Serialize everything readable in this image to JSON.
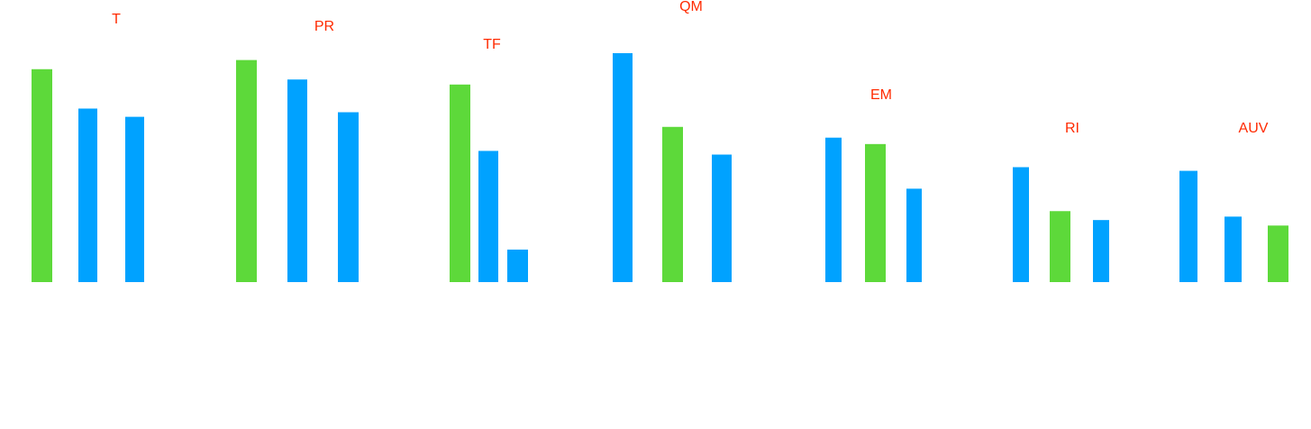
{
  "chart_data": {
    "type": "bar",
    "title": "",
    "xlabel": "",
    "ylabel": "",
    "ylim": [
      0,
      100
    ],
    "colors": {
      "highlight": "#5dd93a",
      "normal": "#00a2ff",
      "label": "#ff2a00"
    },
    "groups": [
      {
        "label": "T",
        "bars": [
          {
            "value": 93.0,
            "color": "highlight"
          },
          {
            "value": 75.8,
            "color": "normal"
          },
          {
            "value": 72.2,
            "color": "normal"
          }
        ]
      },
      {
        "label": "PR",
        "bars": [
          {
            "value": 97.0,
            "color": "highlight"
          },
          {
            "value": 88.5,
            "color": "normal"
          },
          {
            "value": 74.2,
            "color": "normal"
          }
        ]
      },
      {
        "label": "TF",
        "bars": [
          {
            "value": 86.3,
            "color": "highlight"
          },
          {
            "value": 57.3,
            "color": "normal"
          },
          {
            "value": 14.2,
            "color": "normal"
          }
        ]
      },
      {
        "label": "QM",
        "bars": [
          {
            "value": 100.0,
            "color": "normal"
          },
          {
            "value": 67.8,
            "color": "highlight"
          },
          {
            "value": 55.7,
            "color": "normal"
          }
        ]
      },
      {
        "label": "EM",
        "bars": [
          {
            "value": 63.1,
            "color": "normal"
          },
          {
            "value": 60.3,
            "color": "highlight"
          },
          {
            "value": 40.8,
            "color": "normal"
          }
        ]
      },
      {
        "label": "RI",
        "bars": [
          {
            "value": 50.2,
            "color": "normal"
          },
          {
            "value": 31.0,
            "color": "highlight"
          },
          {
            "value": 27.1,
            "color": "normal"
          }
        ]
      },
      {
        "label": "AUV",
        "bars": [
          {
            "value": 48.6,
            "color": "normal"
          },
          {
            "value": 28.6,
            "color": "normal"
          },
          {
            "value": 24.7,
            "color": "highlight"
          }
        ]
      }
    ]
  }
}
